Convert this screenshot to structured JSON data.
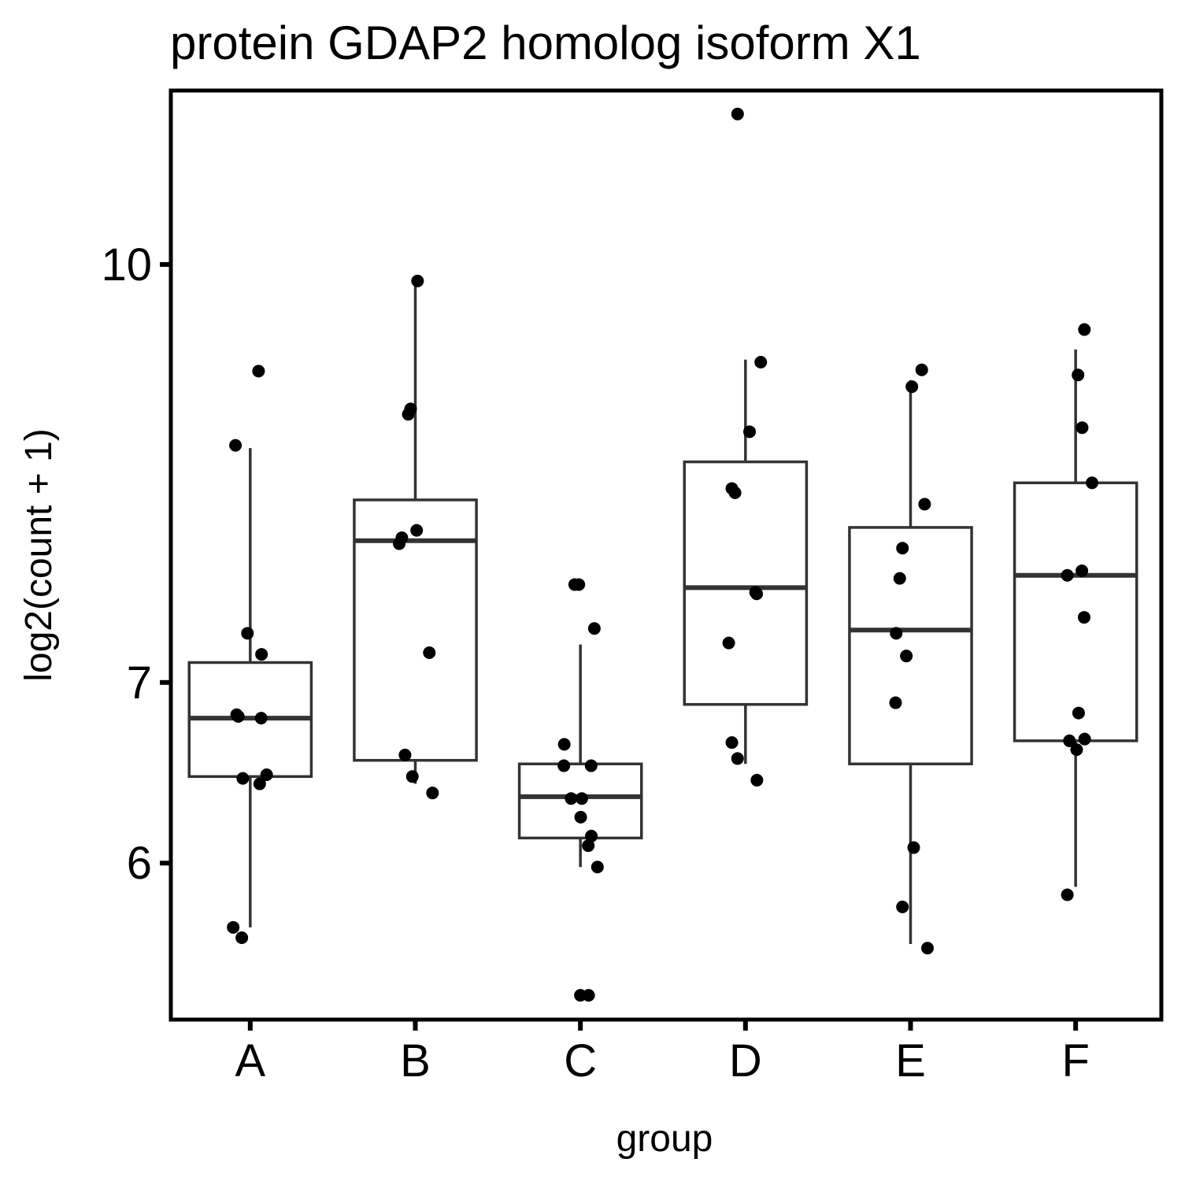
{
  "chart_data": {
    "type": "box",
    "title": "protein GDAP2 homolog isoform X1",
    "xlabel": "group",
    "ylabel": "log2(count + 1)",
    "y_scale": "log",
    "y_ticks": [
      6,
      7,
      10
    ],
    "y_tick_labels": [
      "6",
      "7",
      "10"
    ],
    "ylim": [
      5.25,
      11.6
    ],
    "grid": false,
    "legend": "none",
    "categories": [
      "A",
      "B",
      "C",
      "D",
      "E",
      "F"
    ],
    "boxes": [
      {
        "category": "A",
        "whisker_low": 5.68,
        "q1": 6.46,
        "median": 6.79,
        "q3": 7.12,
        "whisker_high": 8.55
      },
      {
        "category": "B",
        "whisker_low": 6.42,
        "q1": 6.55,
        "median": 7.9,
        "q3": 8.18,
        "whisker_high": 9.82
      },
      {
        "category": "C",
        "whisker_low": 5.98,
        "q1": 6.13,
        "median": 6.35,
        "q3": 6.53,
        "whisker_high": 7.23
      },
      {
        "category": "D",
        "whisker_low": 6.53,
        "q1": 6.87,
        "median": 7.59,
        "q3": 8.45,
        "whisker_high": 9.22
      },
      {
        "category": "E",
        "whisker_low": 5.6,
        "q1": 6.53,
        "median": 7.32,
        "q3": 7.99,
        "whisker_high": 9.06
      },
      {
        "category": "F",
        "whisker_low": 5.88,
        "q1": 6.66,
        "median": 7.67,
        "q3": 8.3,
        "whisker_high": 9.3
      }
    ],
    "points": [
      {
        "category": "A",
        "values": [
          9.13,
          8.57,
          7.3,
          7.17,
          6.8,
          6.79,
          6.81,
          6.47,
          6.45,
          6.42,
          5.68,
          5.63
        ]
      },
      {
        "category": "B",
        "values": [
          9.86,
          8.84,
          8.8,
          7.97,
          7.92,
          7.88,
          7.18,
          6.58,
          6.46,
          6.37
        ]
      },
      {
        "category": "C",
        "values": [
          7.61,
          7.61,
          7.33,
          6.64,
          6.52,
          6.52,
          6.34,
          6.34,
          6.24,
          6.14,
          6.09,
          5.98,
          5.36,
          5.36
        ]
      },
      {
        "category": "D",
        "values": [
          11.37,
          9.2,
          8.67,
          8.26,
          8.23,
          7.55,
          7.56,
          7.24,
          6.65,
          6.56,
          6.44
        ]
      },
      {
        "category": "E",
        "values": [
          9.14,
          9.01,
          8.15,
          7.85,
          7.65,
          7.3,
          7.16,
          6.88,
          6.08,
          5.78,
          5.58
        ]
      },
      {
        "category": "F",
        "values": [
          9.46,
          9.1,
          8.7,
          8.3,
          7.7,
          7.67,
          7.4,
          6.82,
          6.66,
          6.67,
          6.61,
          5.84
        ]
      }
    ]
  }
}
